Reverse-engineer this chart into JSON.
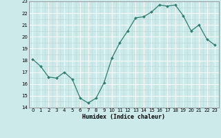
{
  "x": [
    0,
    1,
    2,
    3,
    4,
    5,
    6,
    7,
    8,
    9,
    10,
    11,
    12,
    13,
    14,
    15,
    16,
    17,
    18,
    19,
    20,
    21,
    22,
    23
  ],
  "y": [
    18.1,
    17.5,
    16.6,
    16.5,
    17.0,
    16.4,
    14.8,
    14.4,
    14.8,
    16.1,
    18.2,
    19.5,
    20.5,
    21.6,
    21.7,
    22.1,
    22.7,
    22.6,
    22.7,
    21.8,
    20.5,
    21.0,
    19.8,
    19.3
  ],
  "line_color": "#2e7d6e",
  "marker": "D",
  "marker_size": 2.0,
  "bg_color": "#cceaea",
  "grid_major_color": "#ffffff",
  "grid_minor_color": "#bbdada",
  "xlabel": "Humidex (Indice chaleur)",
  "ylim": [
    14,
    23
  ],
  "xlim": [
    -0.5,
    23.5
  ],
  "yticks": [
    14,
    15,
    16,
    17,
    18,
    19,
    20,
    21,
    22,
    23
  ],
  "xticks": [
    0,
    1,
    2,
    3,
    4,
    5,
    6,
    7,
    8,
    9,
    10,
    11,
    12,
    13,
    14,
    15,
    16,
    17,
    18,
    19,
    20,
    21,
    22,
    23
  ]
}
